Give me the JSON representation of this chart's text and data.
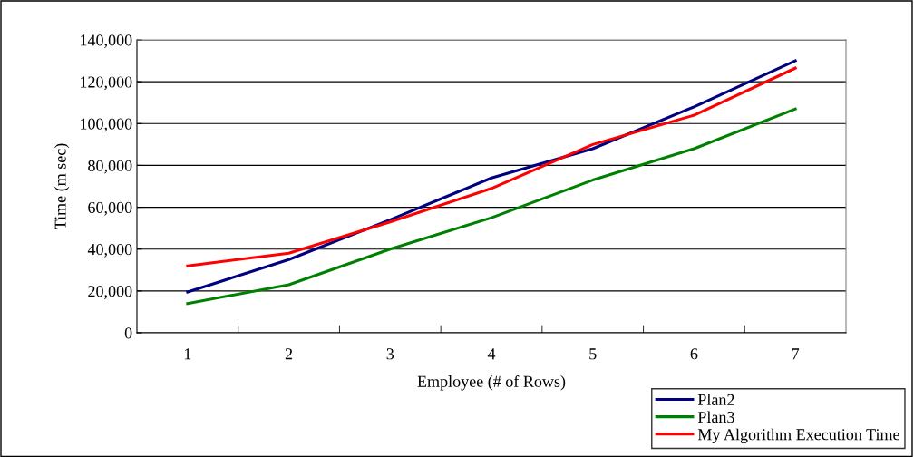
{
  "chart_data": {
    "type": "line",
    "xlabel": "Employee (# of Rows)",
    "ylabel": "Time (m sec)",
    "categories": [
      "1",
      "2",
      "3",
      "4",
      "5",
      "6",
      "7"
    ],
    "series": [
      {
        "name": "Plan2",
        "color": "#000080",
        "values": [
          19500,
          35000,
          54000,
          74000,
          88000,
          108000,
          130000
        ]
      },
      {
        "name": "Plan3",
        "color": "#008000",
        "values": [
          14000,
          23000,
          40000,
          55000,
          73000,
          88000,
          107000
        ]
      },
      {
        "name": "My Algorithm Execution Time",
        "color": "#ff0000",
        "values": [
          32000,
          38000,
          53000,
          69000,
          90000,
          104000,
          126500
        ]
      }
    ],
    "ylim": [
      0,
      140000
    ],
    "yticks": [
      {
        "value": 0,
        "label": "0"
      },
      {
        "value": 20000,
        "label": "20,000"
      },
      {
        "value": 40000,
        "label": "40,000"
      },
      {
        "value": 60000,
        "label": "60,000"
      },
      {
        "value": 80000,
        "label": "80,000"
      },
      {
        "value": 100000,
        "label": "100,000"
      },
      {
        "value": 120000,
        "label": "120,000"
      },
      {
        "value": 140000,
        "label": "140,000"
      }
    ],
    "grid": "y",
    "legend": "bottom right",
    "marker": "none",
    "line_style": "solid"
  }
}
